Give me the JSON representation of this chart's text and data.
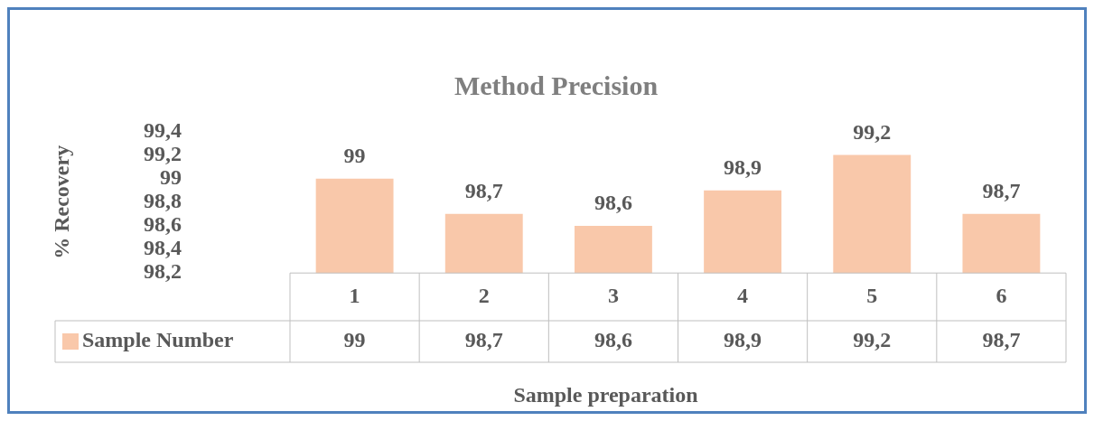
{
  "chart_data": {
    "type": "bar",
    "title": "Method Precision",
    "xlabel": "Sample preparation",
    "ylabel": "% Recovery",
    "categories": [
      "1",
      "2",
      "3",
      "4",
      "5",
      "6"
    ],
    "series": [
      {
        "name": "Sample Number",
        "color": "#f9c8aa",
        "values": [
          99,
          98.7,
          98.6,
          98.9,
          99.2,
          98.7
        ],
        "value_labels": [
          "99",
          "98,7",
          "98,6",
          "98,9",
          "99,2",
          "98,7"
        ]
      }
    ],
    "ylim": [
      98.2,
      99.4
    ],
    "yticks": [
      {
        "value": 98.2,
        "label": "98,2"
      },
      {
        "value": 98.4,
        "label": "98,4"
      },
      {
        "value": 98.6,
        "label": "98,6"
      },
      {
        "value": 98.8,
        "label": "98,8"
      },
      {
        "value": 99,
        "label": "99"
      },
      {
        "value": 99.2,
        "label": "99,2"
      },
      {
        "value": 99.4,
        "label": "99,4"
      }
    ],
    "grid": false,
    "legend": "bottom left"
  }
}
